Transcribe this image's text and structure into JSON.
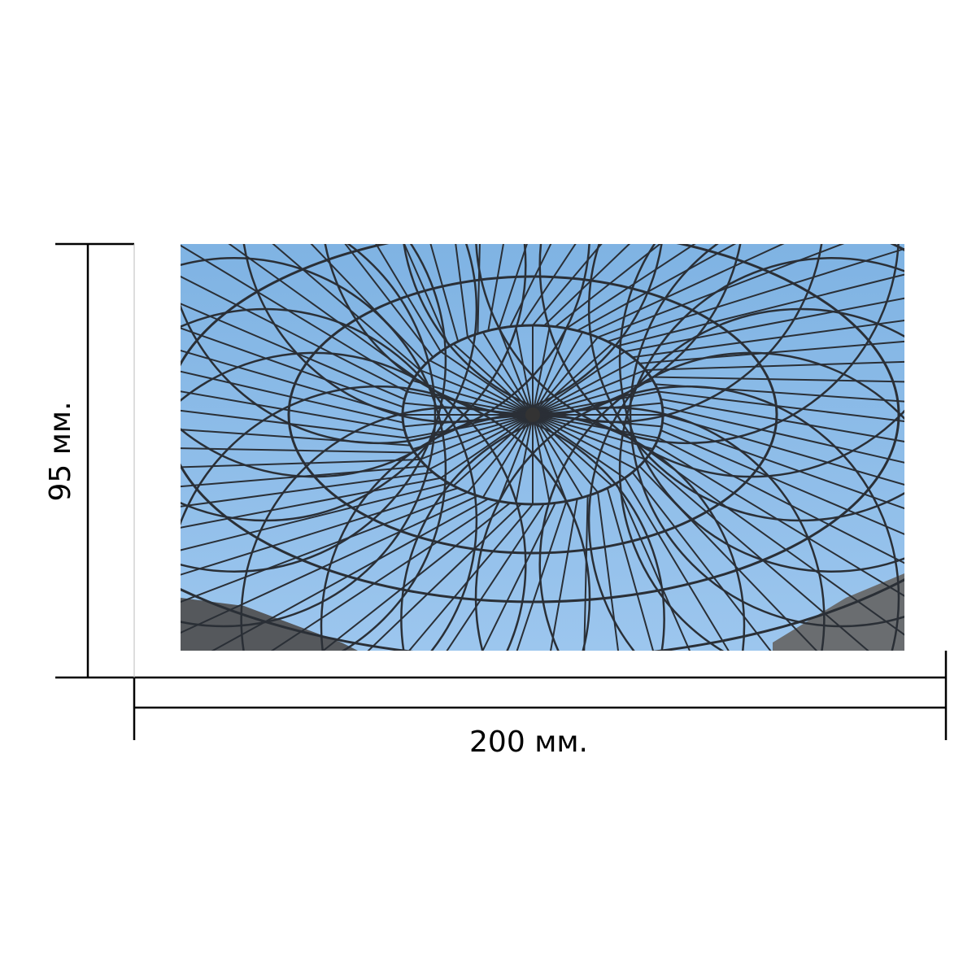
{
  "dimensions": {
    "width_label": "200 мм.",
    "height_label": "95 мм."
  }
}
